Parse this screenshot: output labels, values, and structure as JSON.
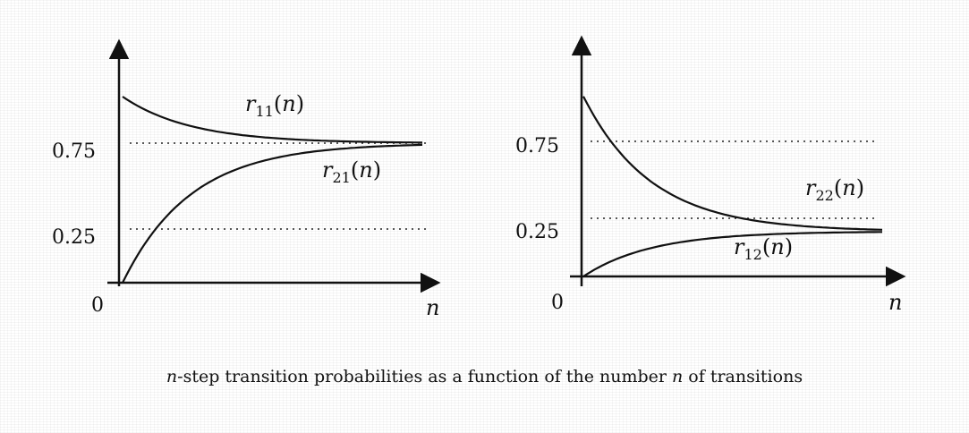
{
  "caption": {
    "var": "n",
    "part1": "-step transition probabilities as a function of the number ",
    "part2": " of transitions"
  },
  "chart_data": [
    {
      "type": "line",
      "title": "",
      "xlabel": "n",
      "ylabel": "",
      "ylim": [
        0,
        1.05
      ],
      "yticks": [
        0,
        0.25,
        0.75
      ],
      "ytick_labels": [
        "0",
        "0.25",
        "0.75"
      ],
      "reference_lines": [
        0.75,
        0.25
      ],
      "series": [
        {
          "name": "r11(n)",
          "base": "r",
          "sub": "11",
          "arg": "n",
          "start": 1.0,
          "limit": 0.75,
          "rate": 0.22
        },
        {
          "name": "r21(n)",
          "base": "r",
          "sub": "21",
          "arg": "n",
          "start": 0.0,
          "limit": 0.75,
          "rate": 0.22
        }
      ]
    },
    {
      "type": "line",
      "title": "",
      "xlabel": "n",
      "ylabel": "",
      "ylim": [
        0,
        1.05
      ],
      "yticks": [
        0,
        0.25,
        0.75
      ],
      "ytick_labels": [
        "0",
        "0.25",
        "0.75"
      ],
      "reference_lines": [
        0.75,
        0.25
      ],
      "series": [
        {
          "name": "r22(n)",
          "base": "r",
          "sub": "22",
          "arg": "n",
          "start": 1.0,
          "limit": 0.25,
          "rate": 0.22
        },
        {
          "name": "r12(n)",
          "base": "r",
          "sub": "12",
          "arg": "n",
          "start": 0.0,
          "limit": 0.25,
          "rate": 0.22
        }
      ]
    }
  ]
}
